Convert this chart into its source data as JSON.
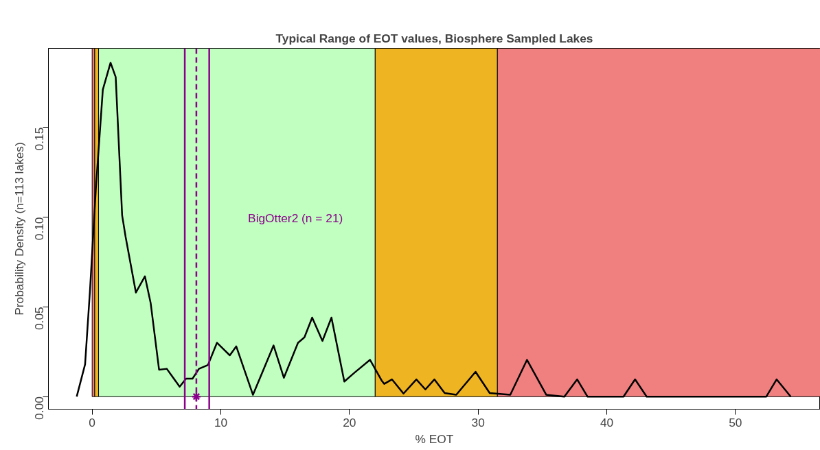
{
  "chart_data": {
    "type": "line",
    "title": "Typical Range of EOT values, Biosphere Sampled Lakes",
    "xlabel": "% EOT",
    "ylabel": "Probability Density (n=113 lakes)",
    "xlim": [
      -3.4,
      56.6
    ],
    "ylim": [
      -0.007,
      0.194
    ],
    "xticks": [
      0,
      10,
      20,
      30,
      40,
      50
    ],
    "yticks": [
      {
        "value": 0,
        "label": "0.00"
      },
      {
        "value": 0.05,
        "label": "0.05"
      },
      {
        "value": 0.1,
        "label": "0.10"
      },
      {
        "value": 0.15,
        "label": "0.15"
      }
    ],
    "grid": false,
    "line_style": "solid",
    "marker": "none",
    "bands": [
      {
        "axis": "x",
        "from": 0,
        "to": 0.2,
        "color": "#f08080"
      },
      {
        "axis": "x",
        "from": 0.2,
        "to": 0.5,
        "color": "#eeb422"
      },
      {
        "axis": "x",
        "from": 0.5,
        "to": 22,
        "color": "#c1ffc1"
      },
      {
        "axis": "x",
        "from": 22,
        "to": 31.5,
        "color": "#eeb422"
      },
      {
        "axis": "x",
        "from": 31.5,
        "to": 56.6,
        "color": "#f08080"
      }
    ],
    "ref_lines": [
      {
        "axis": "x",
        "value": 7.2,
        "color": "#8b008b",
        "line_style": "solid"
      },
      {
        "axis": "x",
        "value": 8.1,
        "color": "#8b008b",
        "line_style": "dashed"
      },
      {
        "axis": "x",
        "value": 9.1,
        "color": "#8b008b",
        "line_style": "solid"
      }
    ],
    "annotations": [
      "BigOtter2 (n = 21)"
    ],
    "series": [
      {
        "color": "#000000",
        "x": [
          -1.2,
          -0.55,
          -0.17,
          0.28,
          0.83,
          1.43,
          1.83,
          2.33,
          2.6,
          3.4,
          4.1,
          4.55,
          5.2,
          5.8,
          6.8,
          7.3,
          7.8,
          8.3,
          9.0,
          9.7,
          10.7,
          11.2,
          12.5,
          14.1,
          14.9,
          16.0,
          16.5,
          17.1,
          17.9,
          18.6,
          19.6,
          20.4,
          21.6,
          22.5,
          22.7,
          23.3,
          24.2,
          25.2,
          25.9,
          26.6,
          27.4,
          28.3,
          29.8,
          30.9,
          32.5,
          33.8,
          35.3,
          36.7,
          37.7,
          38.5,
          41.3,
          42.2,
          43.1,
          52.4,
          53.2,
          54.3
        ],
        "values": [
          0,
          0.018,
          0.059,
          0.115,
          0.171,
          0.186,
          0.178,
          0.101,
          0.089,
          0.058,
          0.067,
          0.052,
          0.015,
          0.0155,
          0.0055,
          0.01,
          0.01,
          0.0155,
          0.0176,
          0.03,
          0.023,
          0.028,
          0.001,
          0.0285,
          0.0105,
          0.03,
          0.033,
          0.044,
          0.031,
          0.044,
          0.0084,
          0.0134,
          0.0205,
          0.009,
          0.0071,
          0.0096,
          0.0017,
          0.0096,
          0.004,
          0.0096,
          0.002,
          0.001,
          0.0138,
          0.002,
          0.001,
          0.0205,
          0.001,
          0,
          0.0096,
          0,
          0,
          0.0096,
          0,
          0,
          0.0096,
          0
        ]
      },
      {
        "type": "scatter",
        "color": "#8b008b",
        "marker": "cross",
        "x": [
          8.1
        ],
        "values": [
          0
        ]
      }
    ]
  }
}
